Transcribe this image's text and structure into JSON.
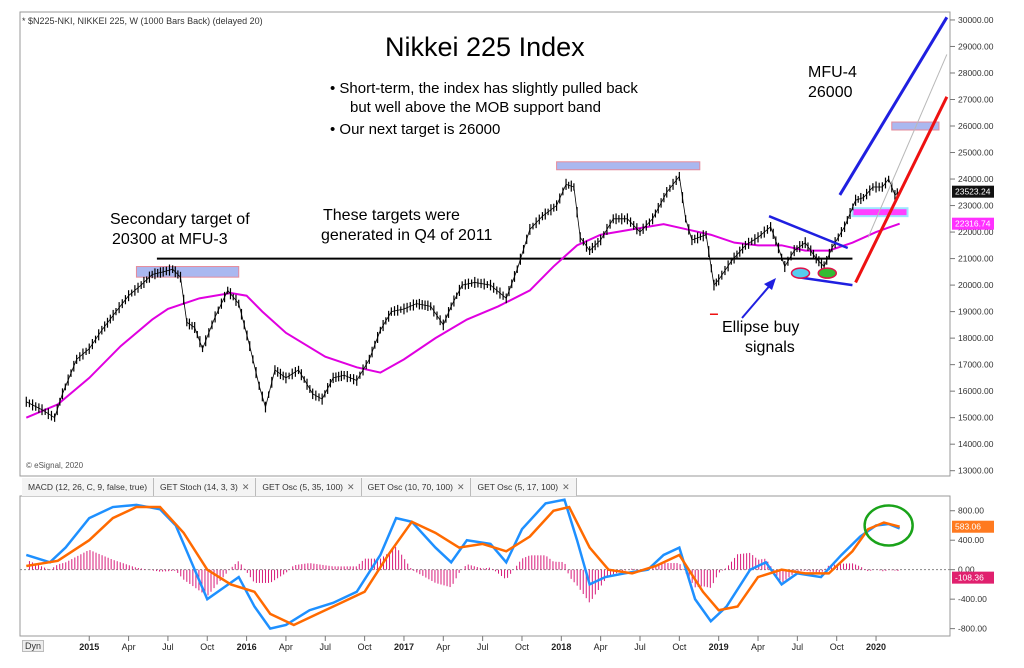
{
  "header": {
    "symbol_line": "* $N225-NKI, NIKKEI 225, W (1000 Bars Back) (delayed 20)",
    "copyright": "© eSignal, 2020"
  },
  "annotations": {
    "title": "Nikkei 225 Index",
    "bullet1_line1": "• Short-term, the index has slightly pulled back",
    "bullet1_line2": "but well above the MOB support band",
    "bullet2": "• Our next target is 26000",
    "secondary_line1": "Secondary target of",
    "secondary_line2": "20300 at MFU-3",
    "targets_line1": "These targets were",
    "targets_line2": "generated in Q4 of 2011",
    "mfu4_line1": "MFU-4",
    "mfu4_line2": "26000",
    "ellipse_line1": "Ellipse buy",
    "ellipse_line2": "signals"
  },
  "indicator_tabs": [
    {
      "label": "MACD (12, 26, C, 9, false, true)"
    },
    {
      "label": "GET Stoch (14, 3, 3)"
    },
    {
      "label": "GET Osc (5, 35, 100)"
    },
    {
      "label": "GET Osc (10, 70, 100)"
    },
    {
      "label": "GET Osc (5, 17, 100)"
    }
  ],
  "footer": {
    "dyn_label": "Dyn"
  },
  "colors": {
    "price": "#000000",
    "ma": "#e000e0",
    "blue_channel": "#1f1fe0",
    "red_channel": "#ee1111",
    "target_band": "#aab8f0",
    "macd": "#1e90ff",
    "signal": "#ff6a00",
    "hist": "#d81b7a",
    "circle": "#1aa31a"
  },
  "chart_data": [
    {
      "type": "line",
      "name": "price",
      "y_axis_ticks": [
        13000,
        14000,
        15000,
        16000,
        17000,
        18000,
        19000,
        20000,
        21000,
        22000,
        23000,
        24000,
        25000,
        26000,
        27000,
        28000,
        29000,
        30000
      ],
      "y_tick_labels": [
        "13000.00",
        "14000.00",
        "15000.00",
        "16000.00",
        "17000.00",
        "18000.00",
        "19000.00",
        "20000.00",
        "21000.00",
        "22000.00",
        "23000.00",
        "24000.00",
        "25000.00",
        "26000.00",
        "27000.00",
        "28000.00",
        "29000.00",
        "30000.00"
      ],
      "ylim": [
        12800,
        30300
      ],
      "x_tick_labels": [
        "2015",
        "Apr",
        "Jul",
        "Oct",
        "2016",
        "Apr",
        "Jul",
        "Oct",
        "2017",
        "Apr",
        "Jul",
        "Oct",
        "2018",
        "Apr",
        "Jul",
        "Oct",
        "2019",
        "Apr",
        "Jul",
        "Oct",
        "2020"
      ],
      "x_ticks": [
        2015.0,
        2015.25,
        2015.5,
        2015.75,
        2016.0,
        2016.25,
        2016.5,
        2016.75,
        2017.0,
        2017.25,
        2017.5,
        2017.75,
        2018.0,
        2018.25,
        2018.5,
        2018.75,
        2019.0,
        2019.25,
        2019.5,
        2019.75,
        2020.0
      ],
      "xlim": [
        2014.56,
        2020.47
      ],
      "price_series": [
        [
          2014.6,
          15600
        ],
        [
          2014.7,
          15300
        ],
        [
          2014.78,
          15000
        ],
        [
          2014.83,
          15900
        ],
        [
          2014.92,
          17200
        ],
        [
          2015.0,
          17600
        ],
        [
          2015.08,
          18300
        ],
        [
          2015.17,
          19000
        ],
        [
          2015.25,
          19600
        ],
        [
          2015.33,
          20000
        ],
        [
          2015.4,
          20400
        ],
        [
          2015.47,
          20500
        ],
        [
          2015.53,
          20600
        ],
        [
          2015.58,
          20300
        ],
        [
          2015.62,
          18600
        ],
        [
          2015.67,
          18400
        ],
        [
          2015.72,
          17600
        ],
        [
          2015.8,
          18800
        ],
        [
          2015.88,
          19800
        ],
        [
          2015.95,
          19300
        ],
        [
          2016.02,
          17700
        ],
        [
          2016.08,
          16200
        ],
        [
          2016.12,
          15400
        ],
        [
          2016.18,
          16800
        ],
        [
          2016.25,
          16500
        ],
        [
          2016.33,
          16800
        ],
        [
          2016.42,
          15900
        ],
        [
          2016.48,
          15700
        ],
        [
          2016.55,
          16500
        ],
        [
          2016.62,
          16600
        ],
        [
          2016.7,
          16400
        ],
        [
          2016.78,
          17200
        ],
        [
          2016.85,
          18300
        ],
        [
          2016.92,
          19000
        ],
        [
          2017.0,
          19100
        ],
        [
          2017.08,
          19300
        ],
        [
          2017.17,
          19200
        ],
        [
          2017.25,
          18500
        ],
        [
          2017.3,
          19200
        ],
        [
          2017.37,
          20000
        ],
        [
          2017.45,
          20100
        ],
        [
          2017.55,
          20000
        ],
        [
          2017.65,
          19500
        ],
        [
          2017.72,
          20600
        ],
        [
          2017.8,
          22100
        ],
        [
          2017.88,
          22600
        ],
        [
          2017.97,
          23000
        ],
        [
          2018.03,
          23800
        ],
        [
          2018.08,
          23700
        ],
        [
          2018.12,
          21800
        ],
        [
          2018.18,
          21300
        ],
        [
          2018.25,
          21700
        ],
        [
          2018.33,
          22500
        ],
        [
          2018.42,
          22500
        ],
        [
          2018.5,
          22000
        ],
        [
          2018.58,
          22500
        ],
        [
          2018.67,
          23500
        ],
        [
          2018.75,
          24100
        ],
        [
          2018.79,
          22500
        ],
        [
          2018.83,
          21700
        ],
        [
          2018.92,
          21900
        ],
        [
          2018.97,
          20000
        ],
        [
          2019.0,
          20200
        ],
        [
          2019.08,
          20900
        ],
        [
          2019.17,
          21500
        ],
        [
          2019.25,
          21800
        ],
        [
          2019.33,
          22200
        ],
        [
          2019.38,
          21400
        ],
        [
          2019.42,
          20700
        ],
        [
          2019.48,
          21300
        ],
        [
          2019.55,
          21600
        ],
        [
          2019.62,
          21000
        ],
        [
          2019.67,
          20700
        ],
        [
          2019.72,
          21400
        ],
        [
          2019.8,
          22200
        ],
        [
          2019.87,
          23200
        ],
        [
          2019.92,
          23300
        ],
        [
          2019.98,
          23700
        ],
        [
          2020.04,
          23700
        ],
        [
          2020.08,
          24000
        ],
        [
          2020.12,
          23400
        ],
        [
          2020.15,
          23520
        ]
      ],
      "ma_series": [
        [
          2014.6,
          15000
        ],
        [
          2014.8,
          15500
        ],
        [
          2015.0,
          16500
        ],
        [
          2015.2,
          17700
        ],
        [
          2015.4,
          18700
        ],
        [
          2015.5,
          19100
        ],
        [
          2015.7,
          19500
        ],
        [
          2015.9,
          19700
        ],
        [
          2016.0,
          19600
        ],
        [
          2016.1,
          19000
        ],
        [
          2016.25,
          18200
        ],
        [
          2016.5,
          17300
        ],
        [
          2016.7,
          16900
        ],
        [
          2016.85,
          16700
        ],
        [
          2017.0,
          17200
        ],
        [
          2017.2,
          18000
        ],
        [
          2017.4,
          18700
        ],
        [
          2017.6,
          19200
        ],
        [
          2017.8,
          19800
        ],
        [
          2017.95,
          20700
        ],
        [
          2018.1,
          21500
        ],
        [
          2018.25,
          21900
        ],
        [
          2018.45,
          22100
        ],
        [
          2018.65,
          22300
        ],
        [
          2018.8,
          22100
        ],
        [
          2018.95,
          21900
        ],
        [
          2019.1,
          21600
        ],
        [
          2019.25,
          21500
        ],
        [
          2019.4,
          21500
        ],
        [
          2019.55,
          21300
        ],
        [
          2019.7,
          21300
        ],
        [
          2019.85,
          21600
        ],
        [
          2020.0,
          22000
        ],
        [
          2020.15,
          22316
        ]
      ],
      "current_price_label": "23523.24",
      "ma_label": "22316.74",
      "horizontal_line_value": 21000,
      "horizontal_line_range": [
        2015.43,
        2019.85
      ],
      "target_bands": [
        {
          "range": [
            2015.3,
            2015.95
          ],
          "low": 20300,
          "high": 20700
        },
        {
          "range": [
            2017.97,
            2018.88
          ],
          "low": 24350,
          "high": 24650
        },
        {
          "range": [
            2020.1,
            2020.4
          ],
          "low": 25850,
          "high": 26150
        }
      ],
      "mob_band": {
        "range": [
          2019.85,
          2020.2
        ],
        "low": 22600,
        "high": 22900
      },
      "blue_channel": [
        [
          2019.82,
          22400
        ],
        [
          2020.45,
          30100
        ]
      ],
      "blue_channel_lower_start": [
        2019.77,
        23400
      ],
      "red_channel": [
        [
          2019.87,
          20100
        ],
        [
          2020.45,
          27100
        ]
      ],
      "gray_midline": [
        [
          2019.95,
          21800
        ],
        [
          2020.45,
          28700
        ]
      ],
      "triangle_upper": [
        [
          2019.32,
          22600
        ],
        [
          2019.82,
          21400
        ]
      ],
      "triangle_lower": [
        [
          2019.5,
          20300
        ],
        [
          2019.85,
          20000
        ]
      ],
      "ellipses": [
        {
          "x": 2019.52,
          "y": 20450,
          "color": "#55ccee"
        },
        {
          "x": 2019.69,
          "y": 20450,
          "color": "#33bb33"
        }
      ],
      "low_marker": {
        "x": 2018.97,
        "y": 18900
      }
    },
    {
      "type": "line",
      "name": "macd",
      "y_axis_ticks": [
        -800,
        -400,
        0,
        400,
        800
      ],
      "y_tick_labels": [
        "-800.00",
        "-400.00",
        "0.00",
        "400.00",
        "800.00"
      ],
      "ylim": [
        -900,
        1000
      ],
      "macd_series": [
        [
          2014.6,
          200
        ],
        [
          2014.75,
          100
        ],
        [
          2014.85,
          300
        ],
        [
          2015.0,
          700
        ],
        [
          2015.15,
          850
        ],
        [
          2015.3,
          880
        ],
        [
          2015.45,
          820
        ],
        [
          2015.55,
          600
        ],
        [
          2015.65,
          100
        ],
        [
          2015.75,
          -400
        ],
        [
          2015.85,
          -250
        ],
        [
          2015.95,
          -100
        ],
        [
          2016.05,
          -500
        ],
        [
          2016.15,
          -800
        ],
        [
          2016.25,
          -750
        ],
        [
          2016.4,
          -550
        ],
        [
          2016.55,
          -450
        ],
        [
          2016.7,
          -300
        ],
        [
          2016.85,
          200
        ],
        [
          2016.95,
          700
        ],
        [
          2017.05,
          650
        ],
        [
          2017.2,
          300
        ],
        [
          2017.3,
          100
        ],
        [
          2017.4,
          400
        ],
        [
          2017.55,
          350
        ],
        [
          2017.65,
          100
        ],
        [
          2017.75,
          550
        ],
        [
          2017.9,
          900
        ],
        [
          2018.02,
          950
        ],
        [
          2018.1,
          400
        ],
        [
          2018.18,
          -200
        ],
        [
          2018.28,
          -100
        ],
        [
          2018.4,
          -50
        ],
        [
          2018.55,
          0
        ],
        [
          2018.65,
          200
        ],
        [
          2018.75,
          300
        ],
        [
          2018.85,
          -400
        ],
        [
          2018.95,
          -700
        ],
        [
          2019.05,
          -500
        ],
        [
          2019.2,
          0
        ],
        [
          2019.3,
          100
        ],
        [
          2019.4,
          -200
        ],
        [
          2019.5,
          -50
        ],
        [
          2019.65,
          -100
        ],
        [
          2019.78,
          200
        ],
        [
          2019.9,
          450
        ],
        [
          2020.0,
          600
        ],
        [
          2020.08,
          620
        ],
        [
          2020.15,
          560
        ]
      ],
      "signal_series": [
        [
          2014.6,
          50
        ],
        [
          2014.8,
          120
        ],
        [
          2015.0,
          400
        ],
        [
          2015.15,
          700
        ],
        [
          2015.3,
          850
        ],
        [
          2015.45,
          850
        ],
        [
          2015.6,
          500
        ],
        [
          2015.75,
          0
        ],
        [
          2015.9,
          -200
        ],
        [
          2016.05,
          -300
        ],
        [
          2016.15,
          -600
        ],
        [
          2016.3,
          -750
        ],
        [
          2016.45,
          -600
        ],
        [
          2016.6,
          -450
        ],
        [
          2016.75,
          -300
        ],
        [
          2016.9,
          200
        ],
        [
          2017.05,
          650
        ],
        [
          2017.2,
          500
        ],
        [
          2017.35,
          300
        ],
        [
          2017.5,
          350
        ],
        [
          2017.65,
          250
        ],
        [
          2017.8,
          450
        ],
        [
          2017.95,
          800
        ],
        [
          2018.05,
          850
        ],
        [
          2018.18,
          300
        ],
        [
          2018.3,
          0
        ],
        [
          2018.45,
          -50
        ],
        [
          2018.6,
          50
        ],
        [
          2018.75,
          200
        ],
        [
          2018.9,
          -300
        ],
        [
          2019.0,
          -550
        ],
        [
          2019.12,
          -500
        ],
        [
          2019.25,
          -100
        ],
        [
          2019.4,
          0
        ],
        [
          2019.55,
          -50
        ],
        [
          2019.7,
          -50
        ],
        [
          2019.85,
          250
        ],
        [
          2019.95,
          550
        ],
        [
          2020.05,
          640
        ],
        [
          2020.15,
          583
        ]
      ],
      "macd_label": "583.06",
      "hist_label": "-108.36"
    }
  ]
}
